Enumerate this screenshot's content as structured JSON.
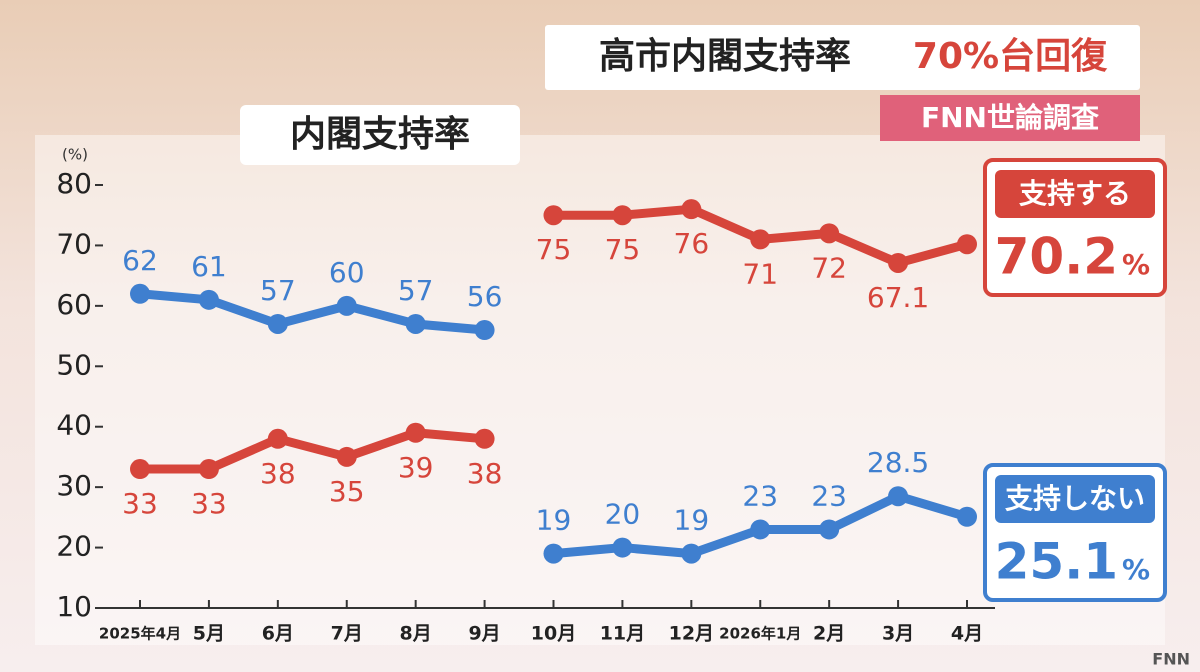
{
  "chart_data": {
    "type": "line",
    "title": "高市内閣支持率",
    "title_highlight": "70%台回復",
    "source": "FNN世論調査",
    "subtitle": "内閣支持率",
    "y_unit_label": "(%)",
    "unit": "%",
    "source_mark": "FNN",
    "categories": [
      "2025年4月",
      "5月",
      "6月",
      "7月",
      "8月",
      "9月",
      "10月",
      "11月",
      "12月",
      "2026年1月",
      "2月",
      "3月",
      "4月"
    ],
    "series": [
      {
        "name": "支持する",
        "values": [
          62,
          61,
          57,
          60,
          57,
          56,
          75,
          75,
          76,
          71,
          72,
          67.1,
          70.2
        ],
        "colors": [
          "#3f7fcf",
          "#3f7fcf",
          "#3f7fcf",
          "#3f7fcf",
          "#3f7fcf",
          "#3f7fcf",
          "#d6453b",
          "#d6453b",
          "#d6453b",
          "#d6453b",
          "#d6453b",
          "#d6453b",
          "#d6453b"
        ],
        "color": "#d6453b"
      },
      {
        "name": "支持しない",
        "values": [
          33,
          33,
          38,
          35,
          39,
          38,
          19,
          20,
          19,
          23,
          23,
          28.5,
          25.1
        ],
        "colors": [
          "#d6453b",
          "#d6453b",
          "#d6453b",
          "#d6453b",
          "#d6453b",
          "#d6453b",
          "#3f7fcf",
          "#3f7fcf",
          "#3f7fcf",
          "#3f7fcf",
          "#3f7fcf",
          "#3f7fcf",
          "#3f7fcf"
        ],
        "color": "#3f7fcf"
      }
    ],
    "ylim": [
      10,
      80
    ],
    "yticks": [
      10,
      20,
      30,
      40,
      50,
      60,
      70,
      80
    ]
  }
}
